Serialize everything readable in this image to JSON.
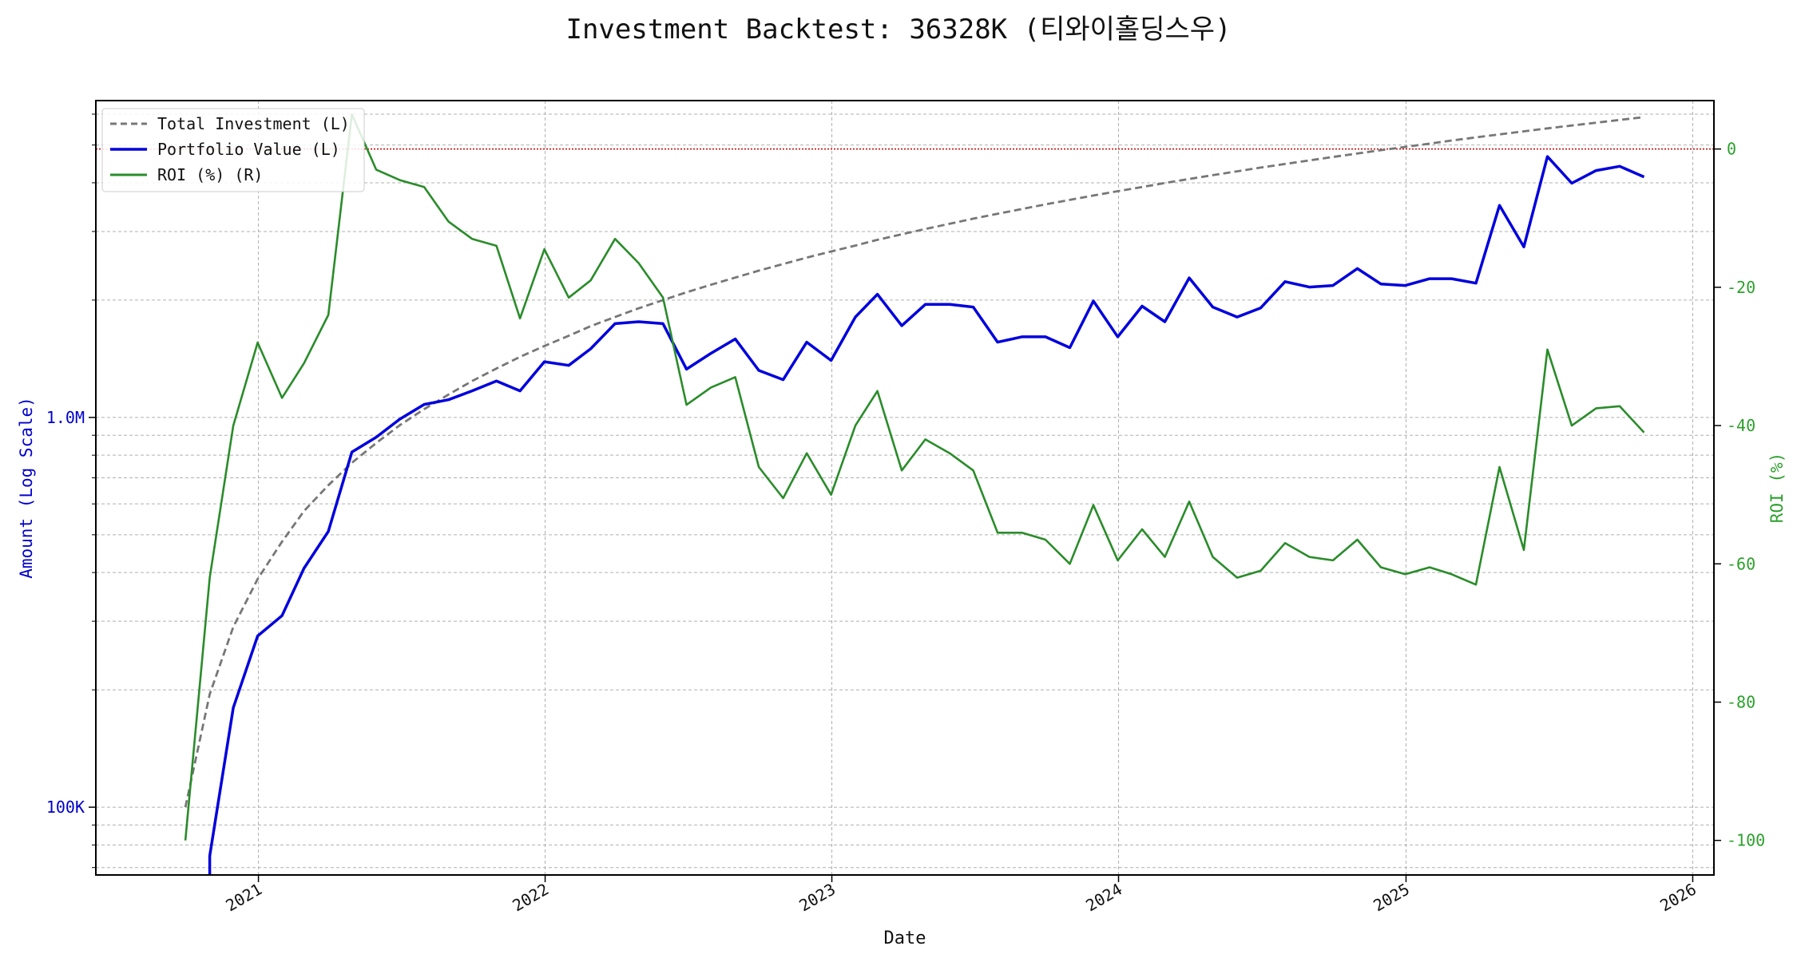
{
  "chart_data": {
    "type": "line",
    "title": "Investment Backtest: 36328K (티와이홀딩스우)",
    "xlabel": "Date",
    "ylabel_left": "Amount (Log Scale)",
    "ylabel_right": "ROI (%)",
    "left_axis": {
      "scale": "log",
      "range": [
        67000,
        6500000
      ],
      "ticks": [
        100000,
        1000000
      ],
      "tick_labels": [
        "100K",
        "1.0M"
      ],
      "color": "#0000cc"
    },
    "right_axis": {
      "scale": "linear",
      "range": [
        -105,
        7
      ],
      "ticks": [
        -100,
        -80,
        -60,
        -40,
        -20,
        0
      ],
      "tick_labels": [
        "-100",
        "-80",
        "-60",
        "-40",
        "-20",
        "0"
      ],
      "color": "#2ca02c"
    },
    "x_axis": {
      "range": [
        "2020-06-08",
        "2026-01-28"
      ],
      "ticks": [
        "2021-01-01",
        "2022-01-01",
        "2023-01-01",
        "2024-01-01",
        "2025-01-01",
        "2026-01-01"
      ],
      "tick_labels": [
        "2021",
        "2022",
        "2023",
        "2024",
        "2025",
        "2026"
      ]
    },
    "grid": true,
    "legend_position": "top-left",
    "reference_line": {
      "axis": "right",
      "value": 0,
      "color": "#cc0000"
    },
    "x": [
      "2020-09-30",
      "2020-10-31",
      "2020-11-30",
      "2020-12-31",
      "2021-01-31",
      "2021-02-28",
      "2021-03-31",
      "2021-04-30",
      "2021-05-31",
      "2021-06-30",
      "2021-07-31",
      "2021-08-31",
      "2021-09-30",
      "2021-10-31",
      "2021-11-30",
      "2021-12-31",
      "2022-01-31",
      "2022-02-28",
      "2022-03-31",
      "2022-04-30",
      "2022-05-31",
      "2022-06-30",
      "2022-07-31",
      "2022-08-31",
      "2022-09-30",
      "2022-10-31",
      "2022-11-30",
      "2022-12-31",
      "2023-01-31",
      "2023-02-28",
      "2023-03-31",
      "2023-04-30",
      "2023-05-31",
      "2023-06-30",
      "2023-07-31",
      "2023-08-31",
      "2023-09-30",
      "2023-10-31",
      "2023-11-30",
      "2023-12-31",
      "2024-01-31",
      "2024-02-29",
      "2024-03-31",
      "2024-04-30",
      "2024-05-31",
      "2024-06-30",
      "2024-07-31",
      "2024-08-31",
      "2024-09-30",
      "2024-10-31",
      "2024-11-30",
      "2024-12-31",
      "2025-01-31",
      "2025-02-28",
      "2025-03-31",
      "2025-04-30",
      "2025-05-31",
      "2025-06-30",
      "2025-07-31",
      "2025-08-31",
      "2025-09-30",
      "2025-10-31"
    ],
    "series": [
      {
        "name": "Total Investment (L)",
        "axis": "left",
        "color": "#777777",
        "style": "dashed",
        "values": [
          100000,
          195000,
          290000,
          385000,
          480000,
          575000,
          670000,
          765000,
          860000,
          955000,
          1050000,
          1145000,
          1240000,
          1335000,
          1430000,
          1525000,
          1620000,
          1715000,
          1810000,
          1905000,
          2000000,
          2095000,
          2190000,
          2285000,
          2380000,
          2475000,
          2570000,
          2665000,
          2760000,
          2855000,
          2950000,
          3045000,
          3140000,
          3235000,
          3330000,
          3425000,
          3520000,
          3615000,
          3710000,
          3805000,
          3900000,
          3995000,
          4090000,
          4185000,
          4280000,
          4375000,
          4470000,
          4565000,
          4660000,
          4755000,
          4850000,
          4945000,
          5040000,
          5135000,
          5230000,
          5325000,
          5420000,
          5515000,
          5610000,
          5705000,
          5800000,
          5895000
        ]
      },
      {
        "name": "Portfolio Value (L)",
        "axis": "left",
        "color": "#0000dd",
        "style": "solid",
        "values": [
          null,
          75000,
          180000,
          275000,
          310000,
          410000,
          510000,
          815000,
          890000,
          990000,
          1080000,
          1110000,
          1170000,
          1240000,
          1170000,
          1390000,
          1360000,
          1500000,
          1740000,
          1760000,
          1740000,
          1330000,
          1460000,
          1590000,
          1320000,
          1250000,
          1560000,
          1400000,
          1810000,
          2070000,
          1720000,
          1950000,
          1950000,
          1920000,
          1560000,
          1610000,
          1610000,
          1510000,
          1990000,
          1610000,
          1930000,
          1760000,
          2280000,
          1920000,
          1810000,
          1910000,
          2230000,
          2160000,
          2180000,
          2410000,
          2200000,
          2180000,
          2270000,
          2270000,
          2210000,
          3500000,
          2740000,
          4670000,
          3990000,
          4300000,
          4410000,
          4140000
        ]
      },
      {
        "name": "ROI (%) (R)",
        "axis": "right",
        "color": "#2a8c2a",
        "style": "solid",
        "values": [
          -100,
          -62,
          -40,
          -28,
          -36,
          -31,
          -24,
          5,
          -3,
          -4.5,
          -5.5,
          -10.5,
          -13,
          -14,
          -24.5,
          -14.5,
          -21.5,
          -19,
          -13,
          -16.5,
          -21.5,
          -37,
          -34.5,
          -33,
          -46,
          -50.5,
          -44,
          -50,
          -40,
          -35,
          -46.5,
          -42,
          -44,
          -46.5,
          -55.5,
          -55.5,
          -56.5,
          -60,
          -51.5,
          -59.5,
          -55,
          -59,
          -51,
          -59,
          -62,
          -61,
          -57,
          -59,
          -59.5,
          -56.5,
          -60.5,
          -61.5,
          -60.5,
          -61.5,
          -63,
          -46,
          -58,
          -29,
          -40,
          -37.5,
          -37.2,
          -41
        ]
      }
    ]
  }
}
